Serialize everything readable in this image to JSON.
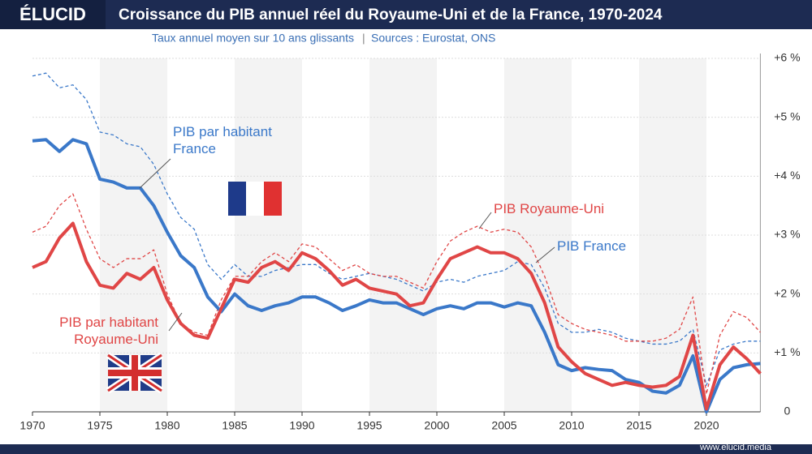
{
  "brand": "ÉLUCID",
  "footer": "www.elucid.media",
  "chart_data": {
    "type": "line",
    "title": "Croissance du PIB annuel réel du Royaume-Uni et de la France, 1970-2024",
    "subtitle": "Taux annuel moyen sur 10 ans glissants",
    "source": "Sources : Eurostat, ONS",
    "x": [
      1970,
      1971,
      1972,
      1973,
      1974,
      1975,
      1976,
      1977,
      1978,
      1979,
      1980,
      1981,
      1982,
      1983,
      1984,
      1985,
      1986,
      1987,
      1988,
      1989,
      1990,
      1991,
      1992,
      1993,
      1994,
      1995,
      1996,
      1997,
      1998,
      1999,
      2000,
      2001,
      2002,
      2003,
      2004,
      2005,
      2006,
      2007,
      2008,
      2009,
      2010,
      2011,
      2012,
      2013,
      2014,
      2015,
      2016,
      2017,
      2018,
      2019,
      2020,
      2021,
      2022,
      2023,
      2024
    ],
    "xlim": [
      1970,
      2024
    ],
    "xticks": [
      1970,
      1975,
      1980,
      1985,
      1990,
      1995,
      2000,
      2005,
      2010,
      2015,
      2020
    ],
    "ylim": [
      0,
      6
    ],
    "yticks": [
      0,
      {
        "value": 1,
        "label": "+1 %"
      },
      {
        "value": 2,
        "label": "+2 %"
      },
      {
        "value": 3,
        "label": "+3 %"
      },
      {
        "value": 4,
        "label": "+4 %"
      },
      {
        "value": 5,
        "label": "+5 %"
      },
      {
        "value": 6,
        "label": "+6 %"
      }
    ],
    "series": [
      {
        "name": "PIB par habitant France",
        "color": "#3a78c9",
        "style": "solid",
        "values": [
          4.6,
          4.62,
          4.42,
          4.62,
          4.55,
          3.95,
          3.9,
          3.8,
          3.8,
          3.5,
          3.05,
          2.65,
          2.45,
          1.95,
          1.7,
          2.0,
          1.8,
          1.72,
          1.8,
          1.85,
          1.95,
          1.95,
          1.85,
          1.72,
          1.8,
          1.9,
          1.85,
          1.85,
          1.75,
          1.65,
          1.75,
          1.8,
          1.75,
          1.85,
          1.85,
          1.78,
          1.85,
          1.8,
          1.35,
          0.8,
          0.7,
          0.75,
          0.72,
          0.7,
          0.55,
          0.5,
          0.35,
          0.32,
          0.45,
          0.95,
          0.0,
          0.55,
          0.75,
          0.8,
          0.82
        ]
      },
      {
        "name": "PIB France",
        "color": "#3a78c9",
        "style": "dashed",
        "values": [
          5.7,
          5.75,
          5.5,
          5.55,
          5.3,
          4.75,
          4.7,
          4.55,
          4.5,
          4.2,
          3.7,
          3.3,
          3.1,
          2.5,
          2.25,
          2.5,
          2.3,
          2.3,
          2.4,
          2.45,
          2.5,
          2.5,
          2.35,
          2.25,
          2.3,
          2.35,
          2.3,
          2.25,
          2.15,
          2.05,
          2.2,
          2.25,
          2.2,
          2.3,
          2.35,
          2.4,
          2.55,
          2.5,
          2.1,
          1.5,
          1.35,
          1.35,
          1.4,
          1.35,
          1.25,
          1.2,
          1.15,
          1.15,
          1.2,
          1.4,
          0.45,
          1.05,
          1.15,
          1.2,
          1.2
        ]
      },
      {
        "name": "PIB Royaume-Uni",
        "color": "#e04646",
        "style": "dashed",
        "values": [
          3.05,
          3.15,
          3.5,
          3.7,
          3.1,
          2.6,
          2.45,
          2.6,
          2.6,
          2.75,
          2.0,
          1.5,
          1.35,
          1.3,
          1.9,
          2.3,
          2.3,
          2.55,
          2.7,
          2.55,
          2.85,
          2.8,
          2.6,
          2.4,
          2.5,
          2.35,
          2.3,
          2.3,
          2.2,
          2.1,
          2.55,
          2.9,
          3.05,
          3.15,
          3.05,
          3.1,
          3.05,
          2.8,
          2.3,
          1.65,
          1.5,
          1.4,
          1.35,
          1.3,
          1.2,
          1.2,
          1.2,
          1.25,
          1.4,
          1.95,
          0.3,
          1.3,
          1.7,
          1.6,
          1.35
        ]
      },
      {
        "name": "PIB par habitant Royaume-Uni",
        "color": "#e04646",
        "style": "solid",
        "values": [
          2.45,
          2.55,
          2.95,
          3.2,
          2.55,
          2.15,
          2.1,
          2.35,
          2.25,
          2.45,
          1.9,
          1.5,
          1.3,
          1.25,
          1.75,
          2.25,
          2.2,
          2.45,
          2.55,
          2.4,
          2.7,
          2.6,
          2.4,
          2.15,
          2.25,
          2.1,
          2.05,
          2.0,
          1.8,
          1.85,
          2.25,
          2.6,
          2.7,
          2.8,
          2.7,
          2.7,
          2.6,
          2.35,
          1.85,
          1.1,
          0.85,
          0.65,
          0.55,
          0.45,
          0.5,
          0.45,
          0.42,
          0.45,
          0.6,
          1.3,
          0.05,
          0.8,
          1.1,
          0.9,
          0.65
        ]
      }
    ]
  }
}
